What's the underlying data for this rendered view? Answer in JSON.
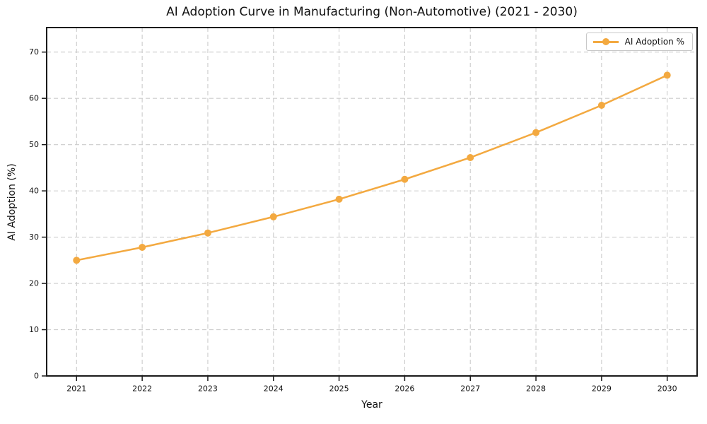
{
  "window": {
    "background": "#ffffff"
  },
  "chart_data": {
    "type": "line",
    "title": "AI Adoption Curve in Manufacturing (Non-Automotive) (2021 - 2030)",
    "xlabel": "Year",
    "ylabel": "AI Adoption (%)",
    "categories": [
      "2021",
      "2022",
      "2023",
      "2024",
      "2025",
      "2026",
      "2027",
      "2028",
      "2029",
      "2030"
    ],
    "series": [
      {
        "name": "AI Adoption %",
        "values": [
          25.0,
          27.8,
          30.9,
          34.4,
          38.2,
          42.5,
          47.2,
          52.6,
          58.5,
          65.0
        ],
        "color": "#F3A940",
        "marker": "circle",
        "line_width": 2.5,
        "marker_radius": 5
      }
    ],
    "ylim": [
      0,
      75.3
    ],
    "yticks": [
      0,
      10,
      20,
      30,
      40,
      50,
      60,
      70
    ],
    "grid": true,
    "grid_style": "dashed",
    "legend": {
      "position": "upper right",
      "entries": [
        "AI Adoption %"
      ]
    },
    "style": {
      "grid_color": "#cccccc",
      "spine_color": "#1a1a1a",
      "tick_color": "#1a1a1a",
      "text_color": "#111111",
      "background": "#ffffff"
    }
  }
}
